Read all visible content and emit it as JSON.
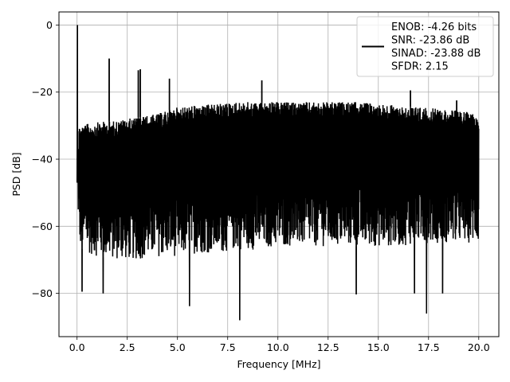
{
  "chart_data": {
    "type": "line",
    "xlabel": "Frequency [MHz]",
    "ylabel": "PSD [dB]",
    "xlim": [
      -0.9,
      21.0
    ],
    "ylim": [
      -92.9,
      3.9
    ],
    "grid": true,
    "legend_position": "top-right",
    "x_ticks": [
      0.0,
      2.5,
      5.0,
      7.5,
      10.0,
      12.5,
      15.0,
      17.5,
      20.0
    ],
    "x_tick_labels": [
      "0.0",
      "2.5",
      "5.0",
      "7.5",
      "10.0",
      "12.5",
      "15.0",
      "17.5",
      "20.0"
    ],
    "y_ticks": [
      0,
      -20,
      -40,
      -60,
      -80
    ],
    "y_tick_labels": [
      "0",
      "−20",
      "−40",
      "−60",
      "−80"
    ],
    "series": [
      {
        "name": "ENOB: -4.26 bits\nSNR: -23.86 dB\nSINAD: -23.88 dB\nSFDR: 2.15",
        "color": "#000000",
        "envelope": {
          "x": [
            0.0,
            0.1,
            0.5,
            1.0,
            2.0,
            3.0,
            4.0,
            5.0,
            6.0,
            7.0,
            8.0,
            9.0,
            10.0,
            11.0,
            12.0,
            13.0,
            14.0,
            15.0,
            16.0,
            17.0,
            18.0,
            19.0,
            20.0
          ],
          "upper": [
            -47,
            -30,
            -29.5,
            -29,
            -28.5,
            -27.5,
            -26.5,
            -24.5,
            -24,
            -23.5,
            -23,
            -23,
            -23,
            -23,
            -23,
            -23,
            -23,
            -23.5,
            -24,
            -24.5,
            -25,
            -25.5,
            -26.5
          ],
          "lower": [
            -47,
            -66,
            -68,
            -69,
            -70,
            -70,
            -69,
            -69,
            -68,
            -68,
            -67,
            -67,
            -66,
            -66,
            -66,
            -66,
            -66,
            -66,
            -66,
            -65,
            -65,
            -65,
            -65
          ]
        },
        "spikes": [
          {
            "x": 0.02,
            "y": 0.0
          },
          {
            "x": 1.6,
            "y": -10.0
          },
          {
            "x": 3.05,
            "y": -13.5
          },
          {
            "x": 3.15,
            "y": -13.2
          },
          {
            "x": 4.6,
            "y": -16.0
          },
          {
            "x": 9.2,
            "y": -16.5
          },
          {
            "x": 16.6,
            "y": -19.5
          },
          {
            "x": 18.9,
            "y": -22.5
          }
        ],
        "dips": [
          {
            "x": 0.25,
            "y": -79.5
          },
          {
            "x": 1.3,
            "y": -80.0
          },
          {
            "x": 5.6,
            "y": -83.8
          },
          {
            "x": 8.1,
            "y": -88.0
          },
          {
            "x": 13.9,
            "y": -80.3
          },
          {
            "x": 16.8,
            "y": -80.0
          },
          {
            "x": 17.4,
            "y": -86.0
          },
          {
            "x": 18.2,
            "y": -80.0
          }
        ]
      }
    ]
  }
}
